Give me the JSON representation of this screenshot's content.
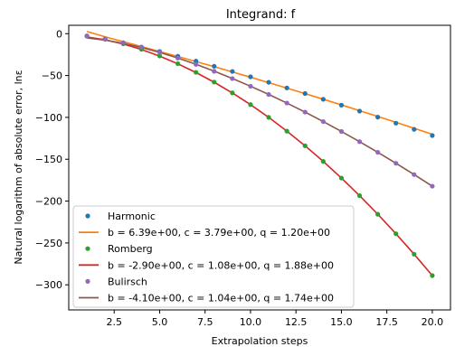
{
  "chart_data": {
    "type": "line",
    "title": "Integrand: f",
    "xlabel": "Extrapolation steps",
    "ylabel": "Natural logarithm of absolute error, lnε",
    "xlim": [
      0.0,
      21.0
    ],
    "ylim": [
      -330,
      10
    ],
    "x_ticks": [
      2.5,
      5.0,
      7.5,
      10.0,
      12.5,
      15.0,
      17.5,
      20.0
    ],
    "x_tick_labels": [
      "2.5",
      "5.0",
      "7.5",
      "10.0",
      "12.5",
      "15.0",
      "17.5",
      "20.0"
    ],
    "y_ticks": [
      0,
      -50,
      -100,
      -150,
      -200,
      -250,
      -300
    ],
    "y_tick_labels": [
      "0",
      "−50",
      "−100",
      "−150",
      "−200",
      "−250",
      "−300"
    ],
    "grid": false,
    "legend_position": "lower-left",
    "x": [
      1,
      2,
      3,
      4,
      5,
      6,
      7,
      8,
      9,
      10,
      11,
      12,
      13,
      14,
      15,
      16,
      17,
      18,
      19,
      20
    ],
    "series": [
      {
        "name": "Harmonic",
        "kind": "scatter",
        "color": "#1f77b4",
        "values": [
          -2.7,
          -6.5,
          -11.0,
          -16.0,
          -21.3,
          -26.9,
          -32.8,
          -38.9,
          -45.1,
          -51.5,
          -58.1,
          -64.8,
          -71.5,
          -78.4,
          -85.4,
          -92.5,
          -99.7,
          -106.9,
          -114.3,
          -121.7
        ]
      },
      {
        "name": "b = 6.39e+00, c = 3.79e+00, q = 1.20e+00",
        "kind": "line",
        "color": "#ff7f0e",
        "values": [
          2.6,
          -3.8,
          -9.6,
          -15.4,
          -21.3,
          -27.2,
          -33.3,
          -39.4,
          -45.7,
          -52.0,
          -58.5,
          -65.0,
          -71.6,
          -78.3,
          -85.1,
          -92.0,
          -98.9,
          -105.9,
          -113.0,
          -120.2
        ]
      },
      {
        "name": "Romberg",
        "kind": "scatter",
        "color": "#2ca02c",
        "values": [
          -2.9,
          -6.7,
          -12.0,
          -18.6,
          -26.6,
          -35.8,
          -46.2,
          -57.8,
          -70.7,
          -84.7,
          -100.0,
          -116.4,
          -133.9,
          -152.6,
          -172.5,
          -193.5,
          -215.7,
          -239.0,
          -263.4,
          -289.0
        ]
      },
      {
        "name": "b = -2.90e+00, c = 1.08e+00, q = 1.88e+00",
        "kind": "line",
        "color": "#d62728",
        "values": [
          -4.0,
          -7.3,
          -12.4,
          -18.9,
          -26.8,
          -36.0,
          -46.4,
          -58.0,
          -70.8,
          -84.8,
          -100.0,
          -116.4,
          -133.9,
          -152.6,
          -172.5,
          -193.5,
          -215.7,
          -239.0,
          -263.4,
          -289.0
        ]
      },
      {
        "name": "Bulirsch",
        "kind": "scatter",
        "color": "#9467bd",
        "values": [
          -3.0,
          -6.2,
          -10.7,
          -16.1,
          -22.3,
          -29.2,
          -36.7,
          -44.9,
          -53.6,
          -62.8,
          -72.6,
          -82.9,
          -93.7,
          -105.0,
          -116.8,
          -129.0,
          -141.7,
          -154.8,
          -168.3,
          -182.2
        ]
      },
      {
        "name": "b = -4.10e+00, c = 1.04e+00, q = 1.74e+00",
        "kind": "line",
        "color": "#8c564b",
        "values": [
          -5.1,
          -7.7,
          -11.6,
          -16.5,
          -22.4,
          -29.1,
          -36.6,
          -44.8,
          -53.6,
          -62.8,
          -72.6,
          -82.9,
          -93.7,
          -105.0,
          -116.8,
          -129.0,
          -141.7,
          -154.8,
          -168.3,
          -182.2
        ]
      }
    ]
  }
}
